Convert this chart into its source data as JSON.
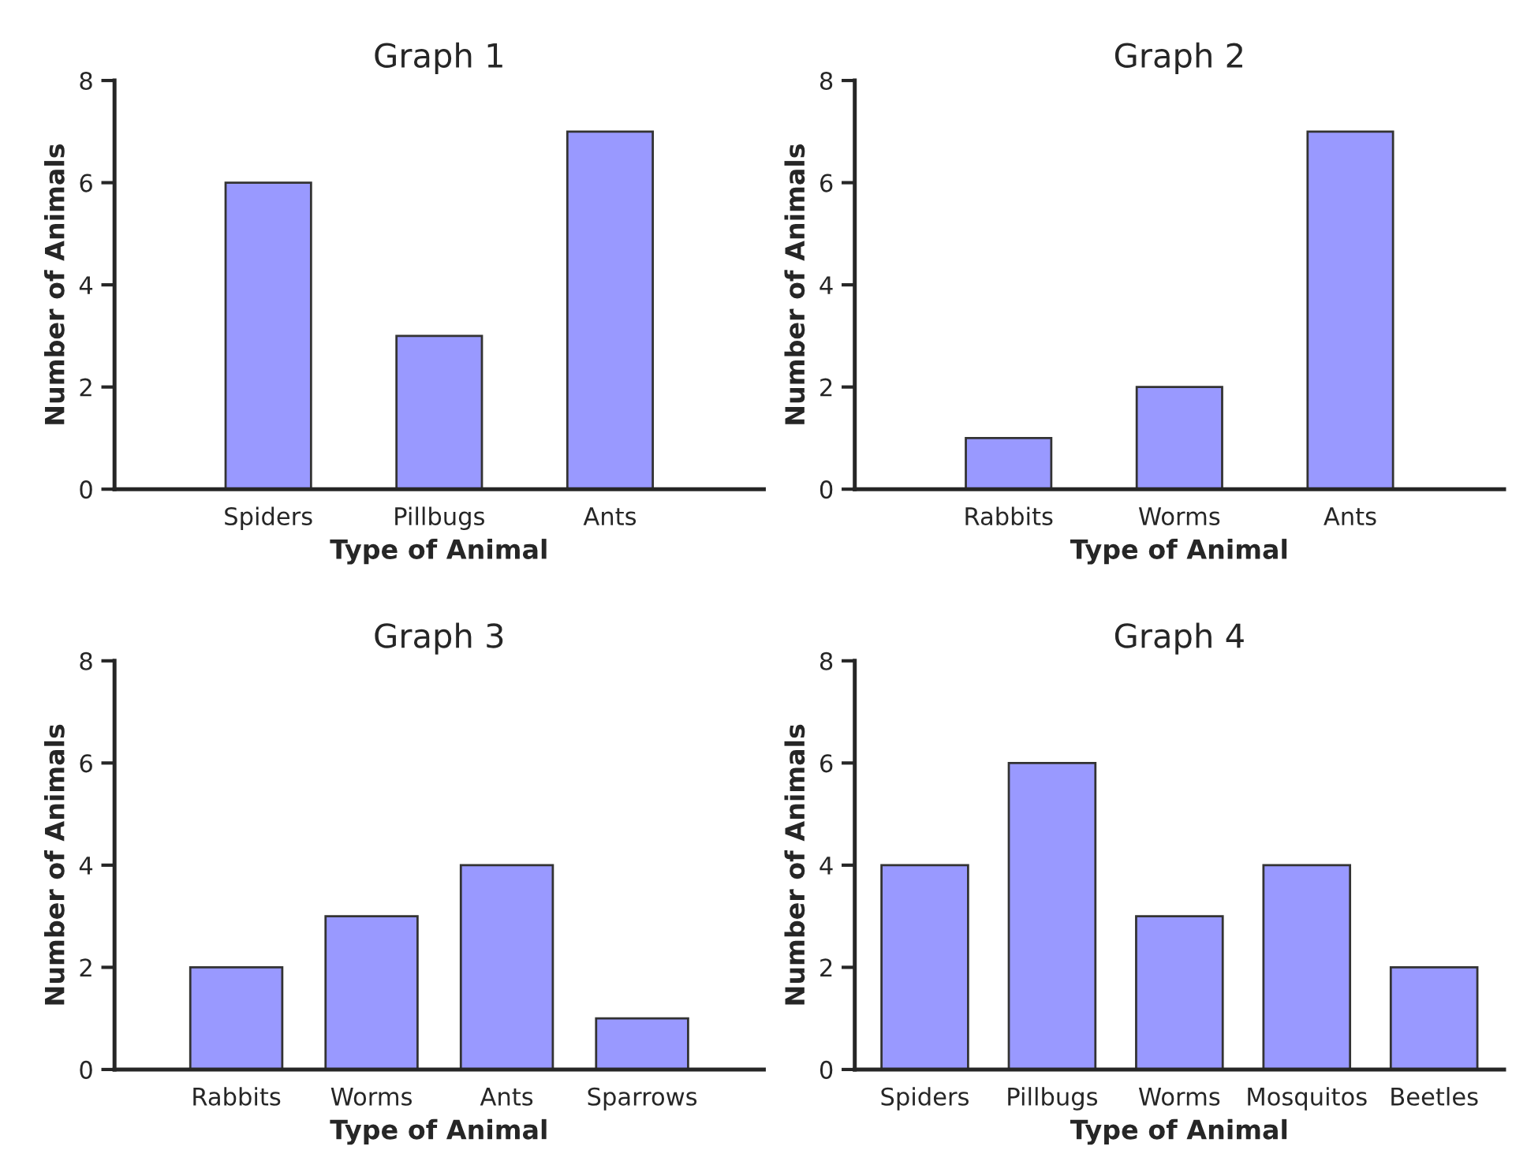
{
  "chart_data": [
    {
      "type": "bar",
      "title": "Graph 1",
      "xlabel": "Type of Animal",
      "ylabel": "Number of Animals",
      "categories": [
        "Spiders",
        "Pillbugs",
        "Ants"
      ],
      "values": [
        6,
        3,
        7
      ],
      "color": "#9999ff",
      "ylim": [
        0,
        8
      ],
      "yticks": [
        0,
        2,
        4,
        6,
        8
      ],
      "grid": false
    },
    {
      "type": "bar",
      "title": "Graph 2",
      "xlabel": "Type of Animal",
      "ylabel": "Number of Animals",
      "categories": [
        "Rabbits",
        "Worms",
        "Ants"
      ],
      "values": [
        1,
        2,
        7
      ],
      "color": "#9999ff",
      "ylim": [
        0,
        8
      ],
      "yticks": [
        0,
        2,
        4,
        6,
        8
      ],
      "grid": false
    },
    {
      "type": "bar",
      "title": "Graph 3",
      "xlabel": "Type of Animal",
      "ylabel": "Number of Animals",
      "categories": [
        "Rabbits",
        "Worms",
        "Ants",
        "Sparrows"
      ],
      "values": [
        2,
        3,
        4,
        1
      ],
      "color": "#9999ff",
      "ylim": [
        0,
        8
      ],
      "yticks": [
        0,
        2,
        4,
        6,
        8
      ],
      "grid": false
    },
    {
      "type": "bar",
      "title": "Graph 4",
      "xlabel": "Type of Animal",
      "ylabel": "Number of Animals",
      "categories": [
        "Spiders",
        "Pillbugs",
        "Worms",
        "Mosquitos",
        "Beetles"
      ],
      "values": [
        4,
        6,
        3,
        4,
        2
      ],
      "color": "#9999ff",
      "ylim": [
        0,
        8
      ],
      "yticks": [
        0,
        2,
        4,
        6,
        8
      ],
      "grid": false
    }
  ]
}
